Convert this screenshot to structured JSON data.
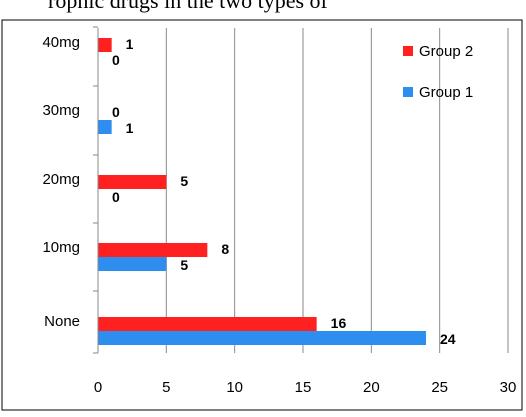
{
  "caption_fragment": "rophic drugs in the two types of",
  "chart_data": {
    "type": "bar",
    "orientation": "horizontal",
    "categories": [
      "None",
      "10mg",
      "20mg",
      "30mg",
      "40mg"
    ],
    "series": [
      {
        "name": "Group 1",
        "color": "#2e8ef0",
        "values": [
          24,
          5,
          0,
          1,
          0
        ]
      },
      {
        "name": "Group 2",
        "color": "#ff2020",
        "values": [
          16,
          8,
          5,
          0,
          1
        ]
      }
    ],
    "data_labels": {
      "Group 1": [
        "24",
        "5",
        "0",
        "1",
        "0"
      ],
      "Group 2": [
        "16",
        "8",
        "5",
        "0",
        "1"
      ]
    },
    "xlim": [
      0,
      30
    ],
    "xticks": [
      "0",
      "5",
      "10",
      "15",
      "20",
      "25",
      "30"
    ],
    "grid": "vertical",
    "legend_position": "top-right",
    "title": "",
    "xlabel": "",
    "ylabel": ""
  }
}
